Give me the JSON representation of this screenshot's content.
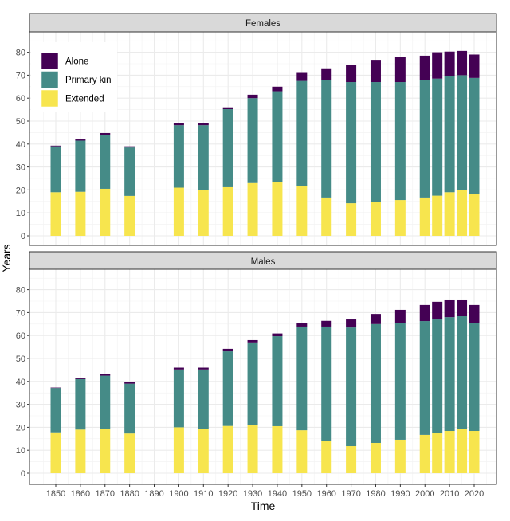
{
  "chart_data": {
    "type": "bar",
    "stacked": true,
    "xlabel": "Time",
    "ylabel": "Years",
    "ylim": [
      0,
      88
    ],
    "yticks": [
      0,
      10,
      20,
      30,
      40,
      50,
      60,
      70,
      80
    ],
    "xlim": [
      1840,
      2030
    ],
    "xticks": [
      1850,
      1860,
      1870,
      1880,
      1890,
      1900,
      1910,
      1920,
      1930,
      1940,
      1950,
      1960,
      1970,
      1980,
      1990,
      2000,
      2010,
      2020
    ],
    "xtick_labels": [
      "1850",
      "1860",
      "1870",
      "1880",
      "1890",
      "1900",
      "1910",
      "1920",
      "1930",
      "1940",
      "1950",
      "1960",
      "1970",
      "1980",
      "1990",
      "2000",
      "2010",
      "2020"
    ],
    "grid": true,
    "legend": {
      "placement": "top-left (inside Females panel)",
      "entries": [
        {
          "name": "Alone",
          "color": "#440154"
        },
        {
          "name": "Primary kin",
          "color": "#458b87"
        },
        {
          "name": "Extended",
          "color": "#f7e54e"
        }
      ]
    },
    "stack_order": [
      "Extended",
      "Primary kin",
      "Alone"
    ],
    "x": [
      1850,
      1860,
      1870,
      1880,
      1900,
      1910,
      1920,
      1930,
      1940,
      1950,
      1960,
      1970,
      1980,
      1990,
      2000,
      2005,
      2010,
      2015,
      2020
    ],
    "panels": [
      {
        "title": "Females",
        "series": [
          {
            "name": "Extended",
            "values": [
              19.0,
              19.2,
              20.5,
              17.4,
              21.0,
              20.0,
              21.2,
              23.0,
              23.3,
              21.6,
              16.7,
              14.2,
              14.6,
              15.6,
              16.7,
              17.5,
              19.0,
              19.8,
              18.4
            ]
          },
          {
            "name": "Primary kin",
            "values": [
              20.0,
              22.3,
              23.5,
              21.1,
              27.2,
              28.2,
              34.0,
              37.0,
              39.7,
              45.9,
              51.1,
              52.8,
              52.4,
              51.4,
              51.1,
              51.0,
              50.5,
              50.2,
              50.4
            ]
          },
          {
            "name": "Alone",
            "values": [
              0.3,
              0.5,
              0.8,
              0.5,
              0.8,
              0.8,
              0.8,
              1.5,
              2.0,
              3.5,
              5.2,
              7.5,
              9.7,
              10.8,
              10.7,
              11.5,
              10.8,
              10.6,
              10.2
            ]
          }
        ]
      },
      {
        "title": "Males",
        "series": [
          {
            "name": "Extended",
            "values": [
              17.8,
              19.0,
              19.4,
              17.3,
              20.0,
              19.4,
              20.6,
              21.1,
              20.5,
              18.7,
              13.9,
              11.8,
              13.2,
              14.6,
              16.7,
              17.4,
              18.4,
              19.4,
              18.4
            ]
          },
          {
            "name": "Primary kin",
            "values": [
              19.3,
              22.0,
              23.1,
              21.7,
              25.2,
              25.8,
              32.5,
              35.9,
              39.2,
              45.2,
              50.0,
              51.7,
              51.8,
              51.0,
              49.6,
              49.6,
              49.6,
              49.0,
              47.2
            ]
          },
          {
            "name": "Alone",
            "values": [
              0.2,
              0.6,
              0.6,
              0.6,
              0.8,
              0.8,
              1.1,
              1.0,
              1.2,
              1.6,
              2.5,
              3.5,
              4.4,
              5.6,
              7.0,
              7.7,
              7.7,
              7.3,
              7.7
            ]
          }
        ]
      }
    ]
  }
}
